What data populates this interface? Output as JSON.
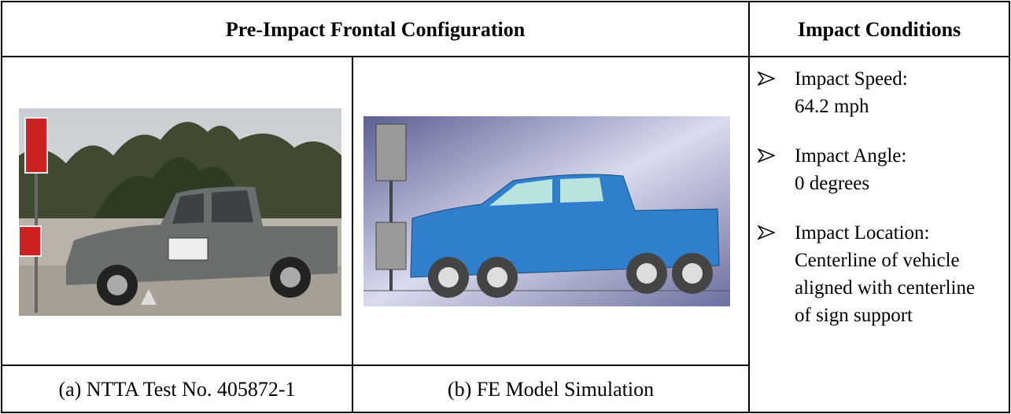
{
  "table": {
    "header": [
      "Pre-Impact Frontal Configuration",
      "Impact Conditions"
    ],
    "captions": [
      "(a) NTTA Test No. 405872-1",
      "(b) FE Model Simulation"
    ],
    "conditions": [
      {
        "label": "Impact Speed:",
        "value": "64.2 mph"
      },
      {
        "label": "Impact Angle:",
        "value": "0 degrees"
      },
      {
        "label": "Impact Location:",
        "value": "Centerline of vehicle aligned with centerline of sign support"
      }
    ]
  }
}
